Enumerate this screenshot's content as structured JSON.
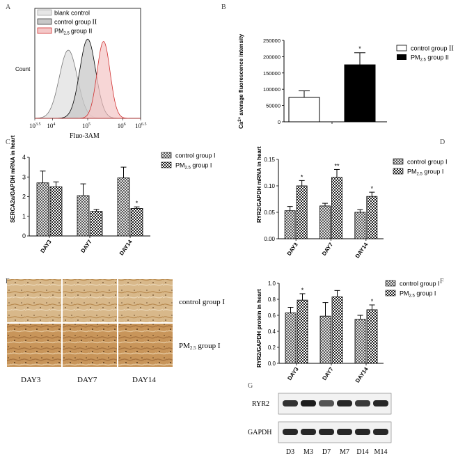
{
  "panel_labels": {
    "A": "A",
    "B": "B",
    "C": "C",
    "D": "D",
    "E": "E",
    "F": "F",
    "G": "G"
  },
  "colors": {
    "blank": "#e6e6e6",
    "control": "#c8c8c8",
    "pm": "#f4c8c8",
    "pm_line": "#d03030",
    "stain": "#c89a5a"
  },
  "chart_data": [
    {
      "panel": "A",
      "type": "area",
      "title": "",
      "xlabel": "Fluo-3AM",
      "ylabel": "Count",
      "xscale": "log",
      "xlim": [
        3.5,
        6.5
      ],
      "xtick_base": "10",
      "xtick_exponents": [
        "3.5",
        "4",
        "5",
        "6",
        "6.5"
      ],
      "legend": [
        "blank control",
        "control group",
        "PM"
      ],
      "legend_suffix": [
        "",
        "II",
        "2.5 group II"
      ],
      "legend_sub": [
        "",
        "",
        "2.5"
      ],
      "legend_tail": [
        "",
        "II",
        "group II"
      ],
      "series": [
        {
          "name": "blank control",
          "peak": 4.45,
          "width": 0.36
        },
        {
          "name": "control group II",
          "peak": 5.0,
          "width": 0.32
        },
        {
          "name": "PM2.5 group II",
          "peak": 5.45,
          "width": 0.26
        }
      ]
    },
    {
      "panel": "B",
      "type": "bar",
      "title": "",
      "ylabel_main": "Ca",
      "ylabel_sup": "2+",
      "ylabel_rest": " average fluorescence intensity",
      "ylim": [
        0,
        250000
      ],
      "yticks": [
        0,
        50000,
        100000,
        150000,
        200000,
        250000
      ],
      "ytick_labels": [
        "0",
        "50000",
        "100000",
        "150000",
        "200000",
        "250000"
      ],
      "series": [
        {
          "name": "control group II",
          "value": 75000,
          "error": 20000,
          "sig": ""
        },
        {
          "name": "PM2.5 group II",
          "value": 175000,
          "error": 37000,
          "sig": "*"
        }
      ],
      "legend": [
        {
          "pre": "control group ",
          "sub": "",
          "post": "II"
        },
        {
          "pre": "PM",
          "sub": "2.5",
          "post": " group II"
        }
      ]
    },
    {
      "panel": "C",
      "type": "bar",
      "title": "",
      "ylabel": "SERCA2a/GAPDH mRNA in heart",
      "categories": [
        "DAY3",
        "DAY7",
        "DAY14"
      ],
      "ylim": [
        0,
        4
      ],
      "yticks": [
        0,
        1,
        2,
        3,
        4
      ],
      "ytick_labels": [
        "0",
        "1",
        "2",
        "3",
        "4"
      ],
      "series": [
        {
          "name": "control group I",
          "values": [
            2.7,
            2.05,
            2.95
          ],
          "errors": [
            0.6,
            0.6,
            0.55
          ],
          "sig": [
            "",
            "",
            ""
          ]
        },
        {
          "name": "PM2.5 group I",
          "values": [
            2.5,
            1.25,
            1.4
          ],
          "errors": [
            0.25,
            0.1,
            0.08
          ],
          "sig": [
            "",
            "",
            "*"
          ]
        }
      ],
      "legend": [
        {
          "pre": "control group I",
          "sub": "",
          "post": ""
        },
        {
          "pre": "PM",
          "sub": "2.5",
          "post": " group  I"
        }
      ]
    },
    {
      "panel": "D",
      "type": "bar",
      "title": "",
      "ylabel": "RYR2/GAPDH mRNA in heart",
      "categories": [
        "DAY3",
        "DAY7",
        "DAY14"
      ],
      "ylim": [
        0,
        0.15
      ],
      "yticks": [
        0,
        0.05,
        0.1,
        0.15
      ],
      "ytick_labels": [
        "0.00",
        "0.05",
        "0.10",
        "0.15"
      ],
      "series": [
        {
          "name": "control group I",
          "values": [
            0.053,
            0.062,
            0.05
          ],
          "errors": [
            0.008,
            0.005,
            0.005
          ],
          "sig": [
            "",
            "",
            ""
          ]
        },
        {
          "name": "PM2.5 group I",
          "values": [
            0.1,
            0.116,
            0.08
          ],
          "errors": [
            0.01,
            0.015,
            0.008
          ],
          "sig": [
            "*",
            "**",
            "*"
          ]
        }
      ],
      "legend": [
        {
          "pre": "control group I",
          "sub": "",
          "post": ""
        },
        {
          "pre": "PM",
          "sub": "2.5",
          "post": " group  I"
        }
      ]
    },
    {
      "panel": "F",
      "type": "bar",
      "title": "",
      "ylabel": "RYR2/GAPDH protein in heart",
      "categories": [
        "DAY3",
        "DAY7",
        "DAY14"
      ],
      "ylim": [
        0,
        1.0
      ],
      "yticks": [
        0,
        0.2,
        0.4,
        0.6,
        0.8,
        1.0
      ],
      "ytick_labels": [
        "0.0",
        "0.2",
        "0.4",
        "0.6",
        "0.8",
        "1.0"
      ],
      "series": [
        {
          "name": "control group I",
          "values": [
            0.63,
            0.59,
            0.55
          ],
          "errors": [
            0.07,
            0.17,
            0.05
          ],
          "sig": [
            "",
            "",
            ""
          ]
        },
        {
          "name": "PM2.5 group I",
          "values": [
            0.79,
            0.83,
            0.67
          ],
          "errors": [
            0.08,
            0.08,
            0.06
          ],
          "sig": [
            "*",
            "",
            "*"
          ]
        }
      ],
      "legend": [
        {
          "pre": "control group I",
          "sub": "",
          "post": ""
        },
        {
          "pre": "PM",
          "sub": "2.5",
          "post": " group  I"
        }
      ]
    }
  ],
  "panelE": {
    "row_labels": [
      {
        "pre": "control group I",
        "sub": "",
        "post": ""
      },
      {
        "pre": "PM",
        "sub": "2.5",
        "post": "  group I"
      }
    ],
    "col_labels": [
      "DAY3",
      "DAY7",
      "DAY14"
    ]
  },
  "panelG": {
    "row_labels": [
      "RYR2",
      "GAPDH"
    ],
    "lane_labels": [
      "D3",
      "M3",
      "D7",
      "M7",
      "D14",
      "M14"
    ],
    "ryr2_intensity": [
      0.85,
      0.95,
      0.7,
      0.9,
      0.82,
      0.9
    ],
    "gapdh_intensity": [
      0.9,
      0.9,
      0.9,
      0.9,
      0.9,
      0.9
    ]
  }
}
